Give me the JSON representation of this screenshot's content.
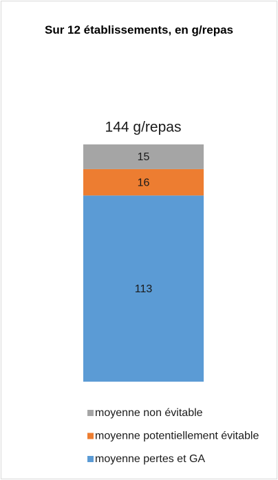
{
  "chart_data": {
    "type": "stacked_bar",
    "title": "Sur 12 établissements,  en g/repas",
    "annotation": "144 g/repas",
    "categories": [
      null
    ],
    "series": [
      {
        "name": "moyenne pertes et GA",
        "color": "#5b9bd5",
        "values": [
          113
        ]
      },
      {
        "name": "moyenne potentiellement évitable",
        "color": "#ed7d31",
        "values": [
          16
        ]
      },
      {
        "name": "moyenne non évitable",
        "color": "#a5a5a5",
        "values": [
          15
        ]
      }
    ],
    "legend": "bottom"
  }
}
